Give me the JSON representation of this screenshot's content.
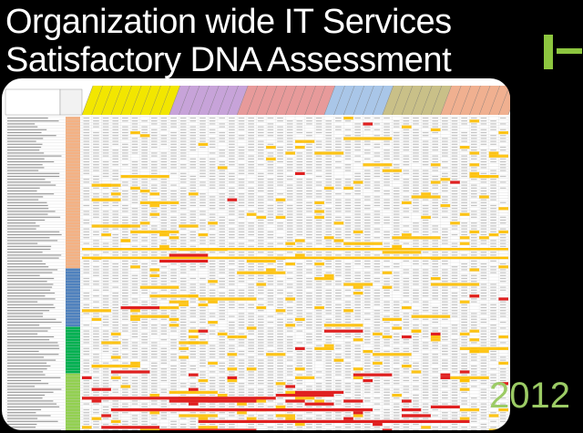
{
  "slide": {
    "title_line1": "Organization wide IT Services",
    "title_line2": "Satisfactory DNA Assessment",
    "year": "2012"
  },
  "colors": {
    "background": "#000000",
    "title": "#ffffff",
    "accent": "#8dc63f",
    "year": "#9ccc65",
    "header_groups": [
      "#f2e600",
      "#c7a3d9",
      "#e79a9a",
      "#a9c6e8",
      "#c9c088",
      "#f0b090"
    ],
    "row_groups": [
      "#f4b183",
      "#4f81bd",
      "#00b050",
      "#92d050"
    ],
    "cell_highlight_yellow": "#ffc000",
    "cell_highlight_red": "#e02020"
  }
}
